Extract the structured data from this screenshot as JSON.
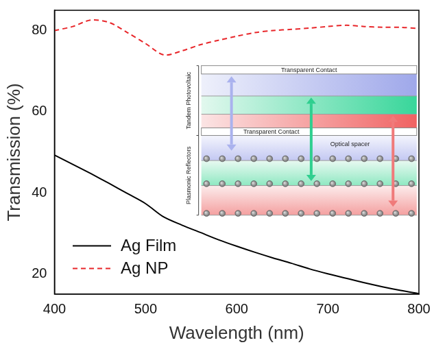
{
  "chart_data": {
    "type": "line",
    "x_label": "Wavelength (nm)",
    "y_label": "Transmission (%)",
    "x": [
      400,
      420,
      440,
      460,
      480,
      500,
      520,
      540,
      560,
      580,
      600,
      620,
      640,
      660,
      680,
      700,
      720,
      740,
      760,
      780,
      800
    ],
    "series": [
      {
        "name": "Ag Film",
        "color": "#000000",
        "line_style": "solid",
        "values": [
          49.3,
          47.0,
          44.7,
          42.3,
          39.8,
          37.3,
          34.0,
          32.0,
          30.2,
          28.4,
          26.8,
          25.3,
          23.9,
          22.6,
          21.2,
          20.0,
          18.9,
          17.8,
          16.8,
          15.9,
          15.1
        ]
      },
      {
        "name": "Ag NP",
        "color": "#e8262a",
        "line_style": "dashed",
        "values": [
          80.0,
          81.0,
          82.6,
          82.0,
          79.5,
          76.8,
          74.0,
          75.0,
          76.5,
          77.6,
          78.6,
          79.5,
          80.0,
          80.3,
          80.6,
          81.0,
          81.3,
          81.0,
          80.8,
          80.8,
          80.5
        ]
      }
    ],
    "xlim": [
      400,
      800
    ],
    "xticks": [
      400,
      500,
      600,
      700,
      800
    ],
    "ylim": [
      15,
      85
    ],
    "yticks": [
      20,
      40,
      60,
      80
    ],
    "grid": false,
    "legend": "lower left"
  },
  "inset": {
    "top_contact": "Transparent Contact",
    "tandem_label": "Tandem Photovoltaic",
    "middle_contact": "Transparent Contact",
    "spacer_label": "Optical spacer",
    "reflector_label": "Plasmonic Reflectors"
  }
}
